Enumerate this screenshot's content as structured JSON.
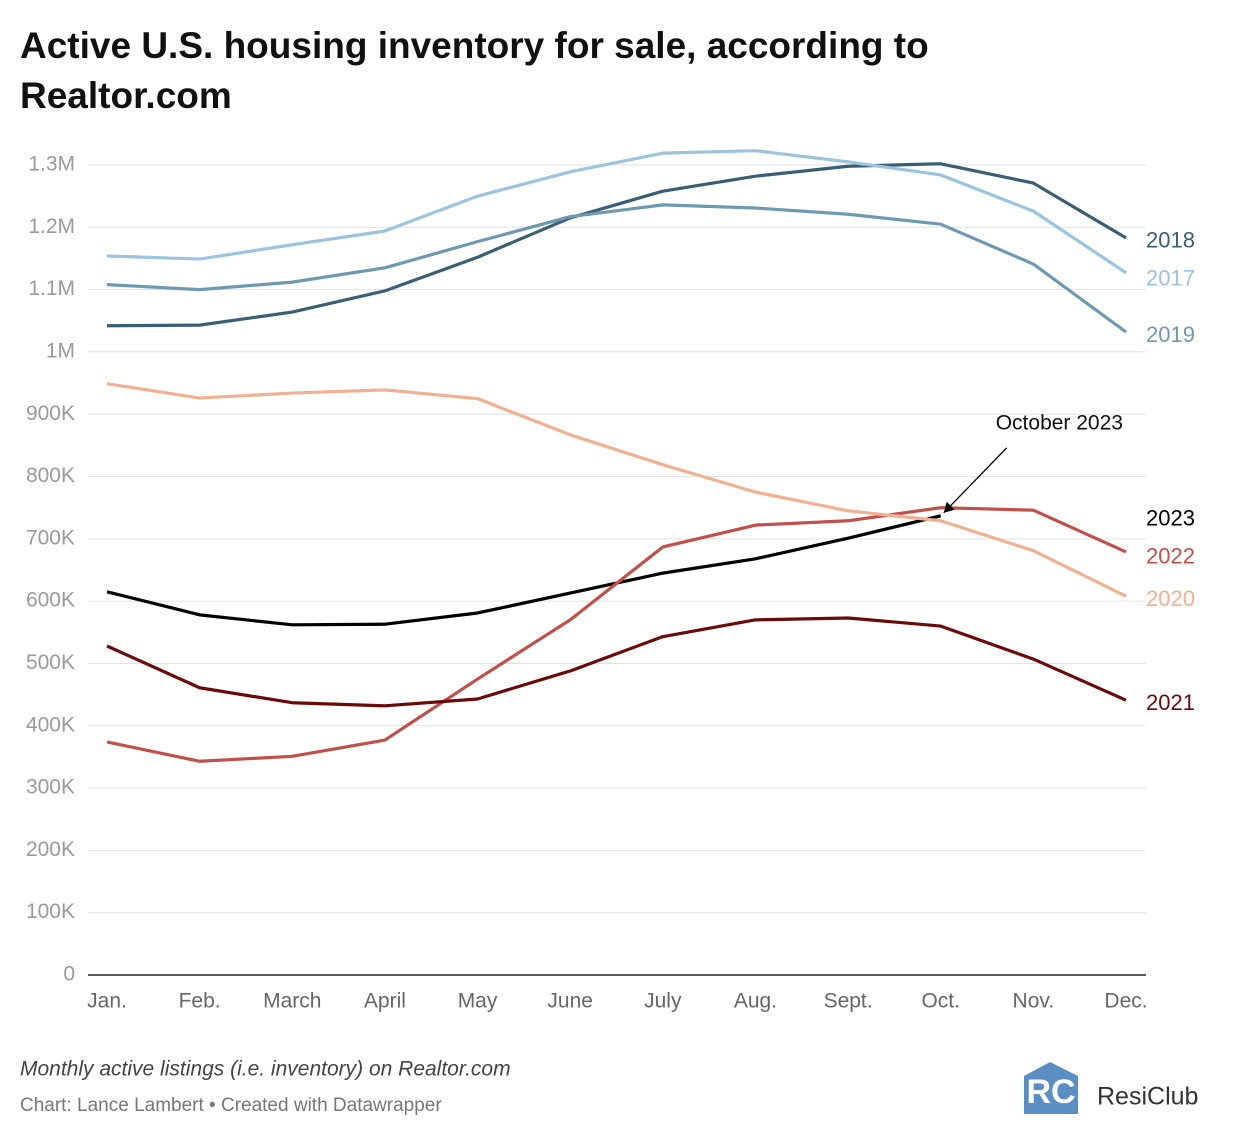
{
  "chart_data": {
    "type": "line",
    "title": "Active U.S. housing inventory for sale, according to Realtor.com",
    "title_lines": [
      "Active U.S. housing inventory for sale, according to",
      "Realtor.com"
    ],
    "note": "Monthly active listings (i.e. inventory) on Realtor.com",
    "credit": "Chart: Lance Lambert • Created with Datawrapper",
    "logo": "ResiClub",
    "annotation": "October 2023",
    "categories": [
      "Jan.",
      "Feb.",
      "March",
      "April",
      "May",
      "June",
      "July",
      "Aug.",
      "Sept.",
      "Oct.",
      "Nov.",
      "Dec."
    ],
    "series": [
      {
        "name": "2018",
        "color": "#3a5f75",
        "values": [
          1042000,
          1043000,
          1064000,
          1098000,
          1152000,
          1215000,
          1258000,
          1282000,
          1298000,
          1302000,
          1271000,
          1183000
        ]
      },
      {
        "name": "2017",
        "color": "#9cc4de",
        "values": [
          1154000,
          1149000,
          1172000,
          1194000,
          1250000,
          1289000,
          1319000,
          1323000,
          1305000,
          1284000,
          1226000,
          1127000
        ]
      },
      {
        "name": "2019",
        "color": "#6f99b0",
        "values": [
          1108000,
          1100000,
          1112000,
          1135000,
          1177000,
          1217000,
          1236000,
          1231000,
          1221000,
          1205000,
          1141000,
          1032000
        ]
      },
      {
        "name": "2023",
        "color": "#000000",
        "values": [
          615000,
          578000,
          562000,
          563000,
          581000,
          613000,
          645000,
          668000,
          701000,
          737000,
          null,
          null
        ]
      },
      {
        "name": "2022",
        "color": "#c0504a",
        "values": [
          374000,
          343000,
          351000,
          377000,
          475000,
          570000,
          687000,
          722000,
          729000,
          750000,
          746000,
          679000
        ]
      },
      {
        "name": "2020",
        "color": "#f2b092",
        "values": [
          949000,
          926000,
          934000,
          939000,
          925000,
          867000,
          819000,
          775000,
          745000,
          729000,
          681000,
          608000
        ]
      },
      {
        "name": "2021",
        "color": "#6b0a0a",
        "values": [
          528000,
          461000,
          437000,
          432000,
          443000,
          488000,
          543000,
          570000,
          573000,
          560000,
          507000,
          441000
        ]
      }
    ],
    "ylim": [
      0,
      1300000
    ],
    "yticks": [
      0,
      {
        "value": 100000,
        "label": "100K"
      },
      {
        "value": 200000,
        "label": "200K"
      },
      {
        "value": 300000,
        "label": "300K"
      },
      {
        "value": 400000,
        "label": "400K"
      },
      {
        "value": 500000,
        "label": "500K"
      },
      {
        "value": 600000,
        "label": "600K"
      },
      {
        "value": 700000,
        "label": "700K"
      },
      {
        "value": 800000,
        "label": "800K"
      },
      {
        "value": 900000,
        "label": "900K"
      },
      {
        "value": 1000000,
        "label": "1M"
      },
      {
        "value": 1100000,
        "label": "1.1M"
      },
      {
        "value": 1200000,
        "label": "1.2M"
      },
      {
        "value": 1300000,
        "label": "1.3M"
      }
    ],
    "grid": true
  }
}
